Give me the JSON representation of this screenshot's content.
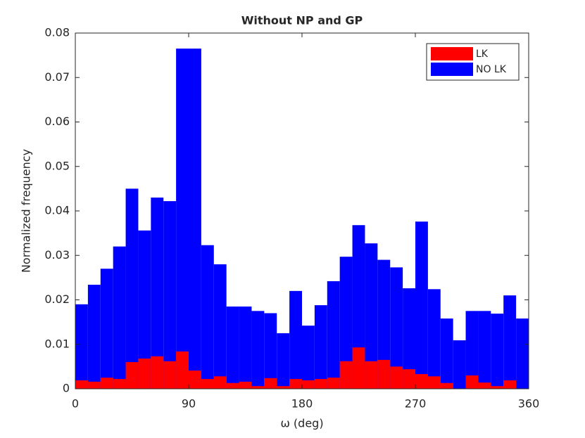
{
  "chart_data": {
    "type": "histogram",
    "title": "Without NP and GP",
    "x_label": "ω (deg)",
    "y_label": "Normalized frequency",
    "bins": [
      0,
      10,
      20,
      30,
      40,
      50,
      60,
      70,
      80,
      90,
      100,
      110,
      120,
      130,
      140,
      150,
      160,
      170,
      180,
      190,
      200,
      210,
      220,
      230,
      240,
      250,
      260,
      270,
      280,
      290,
      300,
      310,
      320,
      330,
      340,
      350,
      360
    ],
    "series": [
      {
        "name": "LK",
        "color": "#ff0000",
        "values": [
          0.0019,
          0.0016,
          0.0025,
          0.0022,
          0.006,
          0.0068,
          0.0073,
          0.0062,
          0.0084,
          0.0041,
          0.0022,
          0.0028,
          0.0013,
          0.0016,
          0.0006,
          0.0024,
          0.0006,
          0.0022,
          0.0019,
          0.0022,
          0.0025,
          0.0062,
          0.0093,
          0.0062,
          0.0065,
          0.005,
          0.0044,
          0.0033,
          0.0028,
          0.0013,
          0,
          0.003,
          0.0014,
          0.0006,
          0.0019,
          0
        ]
      },
      {
        "name": "NO LK",
        "color": "#0000ff",
        "values": [
          0.019,
          0.0234,
          0.027,
          0.032,
          0.045,
          0.0356,
          0.043,
          0.0422,
          0.0765,
          0.0765,
          0.0323,
          0.028,
          0.0185,
          0.0185,
          0.0175,
          0.017,
          0.0125,
          0.022,
          0.0142,
          0.0188,
          0.0242,
          0.0297,
          0.0368,
          0.0327,
          0.029,
          0.0273,
          0.0226,
          0.0376,
          0.0224,
          0.0158,
          0.0109,
          0.0175,
          0.0175,
          0.0169,
          0.021,
          0.0158
        ]
      }
    ],
    "xlim": [
      0,
      360
    ],
    "xticks": [
      0,
      90,
      180,
      270,
      360
    ],
    "ylim": [
      0,
      0.08
    ],
    "yticks": [
      0,
      0.01,
      0.02,
      0.03,
      0.04,
      0.05,
      0.06,
      0.07,
      0.08
    ],
    "legend": "upper right",
    "grid": false
  }
}
